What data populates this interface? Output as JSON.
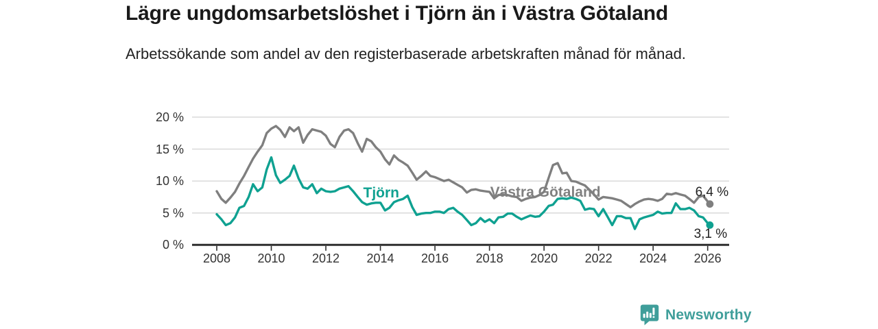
{
  "header": {
    "title": "Lägre ungdomsarbetslöshet i Tjörn än i Västra Götaland",
    "subtitle": "Arbetssökande som andel av den registerbaserade arbetskraften månad för månad."
  },
  "footer": {
    "brand": "Newsworthy",
    "brand_color": "#3f9e9a"
  },
  "chart_data": {
    "type": "line",
    "title": "Lägre ungdomsarbetslöshet i Tjörn än i Västra Götaland",
    "subtitle": "Arbetssökande som andel av den registerbaserade arbetskraften månad för månad.",
    "unit": "%",
    "grid": "horizontal",
    "legend_position": "inline-labels",
    "x_range": [
      2007.1,
      2026.8
    ],
    "y_range": [
      0,
      20
    ],
    "x_ticks": [
      2008,
      2010,
      2012,
      2014,
      2016,
      2018,
      2020,
      2022,
      2024,
      2026
    ],
    "y_ticks": [
      {
        "value": 0,
        "label": "0 %"
      },
      {
        "value": 5,
        "label": "5 %"
      },
      {
        "value": 10,
        "label": "10 %"
      },
      {
        "value": 15,
        "label": "15 %"
      },
      {
        "value": 20,
        "label": "20 %"
      }
    ],
    "colors": {
      "grid": "#d9d9d9",
      "axis": "#2d2d2d",
      "axis_text": "#333333"
    },
    "series": [
      {
        "name": "Tjörn",
        "color": "#0fa191",
        "end_label": "3,1 %",
        "end_value": 3.1,
        "label_at": {
          "year": 2014.03,
          "pct": 8.1
        },
        "points": [
          [
            2008.0,
            4.8
          ],
          [
            2008.17,
            4.0
          ],
          [
            2008.33,
            3.1
          ],
          [
            2008.5,
            3.4
          ],
          [
            2008.67,
            4.3
          ],
          [
            2008.83,
            5.8
          ],
          [
            2009.0,
            6.1
          ],
          [
            2009.17,
            7.5
          ],
          [
            2009.33,
            9.5
          ],
          [
            2009.5,
            8.4
          ],
          [
            2009.67,
            9.0
          ],
          [
            2009.83,
            11.8
          ],
          [
            2010.0,
            13.7
          ],
          [
            2010.17,
            10.9
          ],
          [
            2010.33,
            9.7
          ],
          [
            2010.5,
            10.2
          ],
          [
            2010.67,
            10.8
          ],
          [
            2010.83,
            12.4
          ],
          [
            2011.0,
            10.4
          ],
          [
            2011.17,
            9.0
          ],
          [
            2011.33,
            8.8
          ],
          [
            2011.5,
            9.5
          ],
          [
            2011.67,
            8.1
          ],
          [
            2011.83,
            8.8
          ],
          [
            2012.0,
            8.4
          ],
          [
            2012.17,
            8.3
          ],
          [
            2012.33,
            8.4
          ],
          [
            2012.5,
            8.8
          ],
          [
            2012.67,
            9.0
          ],
          [
            2012.83,
            9.2
          ],
          [
            2013.0,
            8.4
          ],
          [
            2013.17,
            7.5
          ],
          [
            2013.33,
            6.7
          ],
          [
            2013.5,
            6.3
          ],
          [
            2013.67,
            6.5
          ],
          [
            2013.83,
            6.6
          ],
          [
            2014.0,
            6.6
          ],
          [
            2014.17,
            5.4
          ],
          [
            2014.33,
            5.8
          ],
          [
            2014.5,
            6.7
          ],
          [
            2014.67,
            7.0
          ],
          [
            2014.83,
            7.2
          ],
          [
            2015.0,
            7.7
          ],
          [
            2015.17,
            5.9
          ],
          [
            2015.33,
            4.7
          ],
          [
            2015.5,
            4.9
          ],
          [
            2015.67,
            5.0
          ],
          [
            2015.83,
            5.0
          ],
          [
            2016.0,
            5.2
          ],
          [
            2016.17,
            5.2
          ],
          [
            2016.33,
            5.0
          ],
          [
            2016.5,
            5.6
          ],
          [
            2016.67,
            5.8
          ],
          [
            2016.83,
            5.2
          ],
          [
            2017.0,
            4.7
          ],
          [
            2017.17,
            3.9
          ],
          [
            2017.33,
            3.1
          ],
          [
            2017.5,
            3.4
          ],
          [
            2017.67,
            4.2
          ],
          [
            2017.83,
            3.6
          ],
          [
            2018.0,
            4.0
          ],
          [
            2018.17,
            3.4
          ],
          [
            2018.33,
            4.3
          ],
          [
            2018.5,
            4.4
          ],
          [
            2018.67,
            4.9
          ],
          [
            2018.83,
            4.9
          ],
          [
            2019.0,
            4.4
          ],
          [
            2019.17,
            4.0
          ],
          [
            2019.33,
            4.3
          ],
          [
            2019.5,
            4.6
          ],
          [
            2019.67,
            4.4
          ],
          [
            2019.83,
            4.5
          ],
          [
            2020.0,
            5.2
          ],
          [
            2020.17,
            6.1
          ],
          [
            2020.33,
            6.3
          ],
          [
            2020.5,
            7.2
          ],
          [
            2020.67,
            7.3
          ],
          [
            2020.83,
            7.2
          ],
          [
            2021.0,
            7.4
          ],
          [
            2021.17,
            7.2
          ],
          [
            2021.33,
            6.9
          ],
          [
            2021.5,
            5.5
          ],
          [
            2021.67,
            5.7
          ],
          [
            2021.83,
            5.6
          ],
          [
            2022.0,
            4.5
          ],
          [
            2022.17,
            5.6
          ],
          [
            2022.33,
            4.4
          ],
          [
            2022.5,
            3.1
          ],
          [
            2022.67,
            4.5
          ],
          [
            2022.83,
            4.5
          ],
          [
            2023.0,
            4.2
          ],
          [
            2023.17,
            4.2
          ],
          [
            2023.33,
            2.5
          ],
          [
            2023.5,
            4.0
          ],
          [
            2023.67,
            4.3
          ],
          [
            2023.83,
            4.5
          ],
          [
            2024.0,
            4.7
          ],
          [
            2024.17,
            5.2
          ],
          [
            2024.33,
            4.9
          ],
          [
            2024.5,
            5.0
          ],
          [
            2024.67,
            5.0
          ],
          [
            2024.83,
            6.5
          ],
          [
            2025.0,
            5.6
          ],
          [
            2025.17,
            5.6
          ],
          [
            2025.33,
            5.8
          ],
          [
            2025.5,
            5.4
          ],
          [
            2025.67,
            4.5
          ],
          [
            2025.83,
            4.3
          ],
          [
            2026.0,
            3.4
          ],
          [
            2026.08,
            3.1
          ]
        ]
      },
      {
        "name": "Västra Götaland",
        "color": "#7f7f7f",
        "end_label": "6,4 %",
        "end_value": 6.4,
        "label_at": {
          "year": 2020.05,
          "pct": 8.2
        },
        "points": [
          [
            2008.0,
            8.4
          ],
          [
            2008.17,
            7.2
          ],
          [
            2008.33,
            6.6
          ],
          [
            2008.5,
            7.4
          ],
          [
            2008.67,
            8.3
          ],
          [
            2008.83,
            9.6
          ],
          [
            2009.0,
            10.8
          ],
          [
            2009.17,
            12.2
          ],
          [
            2009.33,
            13.5
          ],
          [
            2009.5,
            14.6
          ],
          [
            2009.67,
            15.6
          ],
          [
            2009.83,
            17.5
          ],
          [
            2010.0,
            18.2
          ],
          [
            2010.17,
            18.6
          ],
          [
            2010.33,
            18.0
          ],
          [
            2010.5,
            16.9
          ],
          [
            2010.67,
            18.4
          ],
          [
            2010.83,
            17.8
          ],
          [
            2011.0,
            18.4
          ],
          [
            2011.17,
            16.0
          ],
          [
            2011.33,
            17.2
          ],
          [
            2011.5,
            18.1
          ],
          [
            2011.67,
            17.9
          ],
          [
            2011.83,
            17.7
          ],
          [
            2012.0,
            17.1
          ],
          [
            2012.17,
            15.8
          ],
          [
            2012.33,
            15.3
          ],
          [
            2012.5,
            16.9
          ],
          [
            2012.67,
            17.9
          ],
          [
            2012.83,
            18.1
          ],
          [
            2013.0,
            17.5
          ],
          [
            2013.17,
            15.9
          ],
          [
            2013.33,
            14.6
          ],
          [
            2013.5,
            16.6
          ],
          [
            2013.67,
            16.2
          ],
          [
            2013.83,
            15.3
          ],
          [
            2014.0,
            14.6
          ],
          [
            2014.17,
            13.4
          ],
          [
            2014.33,
            12.6
          ],
          [
            2014.5,
            14.0
          ],
          [
            2014.67,
            13.3
          ],
          [
            2014.83,
            12.9
          ],
          [
            2015.0,
            12.4
          ],
          [
            2015.17,
            11.3
          ],
          [
            2015.33,
            10.2
          ],
          [
            2015.5,
            10.8
          ],
          [
            2015.67,
            11.5
          ],
          [
            2015.83,
            10.8
          ],
          [
            2016.0,
            10.6
          ],
          [
            2016.17,
            10.3
          ],
          [
            2016.33,
            10.0
          ],
          [
            2016.5,
            10.2
          ],
          [
            2016.67,
            9.8
          ],
          [
            2016.83,
            9.4
          ],
          [
            2017.0,
            9.0
          ],
          [
            2017.17,
            8.2
          ],
          [
            2017.33,
            8.6
          ],
          [
            2017.5,
            8.7
          ],
          [
            2017.67,
            8.5
          ],
          [
            2017.83,
            8.4
          ],
          [
            2018.0,
            8.3
          ],
          [
            2018.17,
            7.3
          ],
          [
            2018.33,
            7.8
          ],
          [
            2018.5,
            7.9
          ],
          [
            2018.67,
            7.8
          ],
          [
            2018.83,
            7.6
          ],
          [
            2019.0,
            7.5
          ],
          [
            2019.17,
            6.9
          ],
          [
            2019.33,
            7.2
          ],
          [
            2019.5,
            7.4
          ],
          [
            2019.67,
            7.5
          ],
          [
            2019.83,
            7.8
          ],
          [
            2020.0,
            8.3
          ],
          [
            2020.17,
            10.5
          ],
          [
            2020.33,
            12.5
          ],
          [
            2020.5,
            12.8
          ],
          [
            2020.67,
            11.2
          ],
          [
            2020.83,
            11.3
          ],
          [
            2021.0,
            10.0
          ],
          [
            2021.17,
            9.9
          ],
          [
            2021.33,
            9.6
          ],
          [
            2021.5,
            9.3
          ],
          [
            2021.67,
            8.6
          ],
          [
            2021.83,
            7.9
          ],
          [
            2022.0,
            7.1
          ],
          [
            2022.17,
            7.5
          ],
          [
            2022.33,
            7.4
          ],
          [
            2022.5,
            7.3
          ],
          [
            2022.67,
            7.1
          ],
          [
            2022.83,
            6.9
          ],
          [
            2023.0,
            6.4
          ],
          [
            2023.17,
            5.9
          ],
          [
            2023.33,
            6.4
          ],
          [
            2023.5,
            6.8
          ],
          [
            2023.67,
            7.1
          ],
          [
            2023.83,
            7.2
          ],
          [
            2024.0,
            7.1
          ],
          [
            2024.17,
            6.9
          ],
          [
            2024.33,
            7.2
          ],
          [
            2024.5,
            8.0
          ],
          [
            2024.67,
            7.9
          ],
          [
            2024.83,
            8.1
          ],
          [
            2025.0,
            7.9
          ],
          [
            2025.17,
            7.7
          ],
          [
            2025.33,
            7.2
          ],
          [
            2025.5,
            6.6
          ],
          [
            2025.67,
            7.5
          ],
          [
            2025.83,
            7.7
          ],
          [
            2026.0,
            6.8
          ],
          [
            2026.08,
            6.4
          ]
        ]
      }
    ]
  }
}
